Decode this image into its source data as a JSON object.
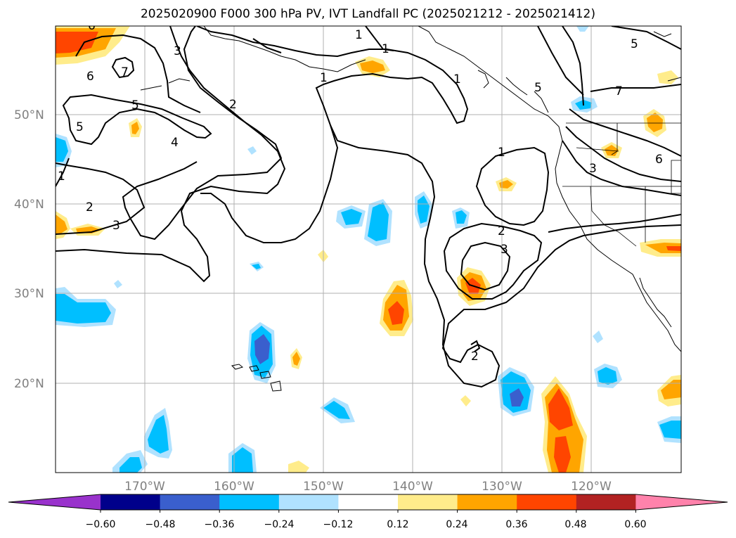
{
  "title": "2025020900 F000 300 hPa PV, IVT Landfall PC (2025021212 - 2025021412)",
  "lat_ticks": [
    "50°N",
    "40°N",
    "30°N",
    "20°N"
  ],
  "lon_ticks": [
    "170°W",
    "160°W",
    "150°W",
    "140°W",
    "130°W",
    "120°W"
  ],
  "colorbar": {
    "ticks": [
      "−0.60",
      "−0.48",
      "−0.36",
      "−0.24",
      "−0.12",
      "0.12",
      "0.24",
      "0.36",
      "0.48",
      "0.60"
    ],
    "colors": [
      "#9932cc",
      "#00008b",
      "#3a5fcd",
      "#00bfff",
      "#b0e2ff",
      "#ffffff",
      "#ffec8b",
      "#ffa500",
      "#ff4500",
      "#b22222",
      "#ff82ab"
    ]
  },
  "contour_labels": [
    "1",
    "1",
    "1",
    "1",
    "1",
    "1",
    "2",
    "2",
    "2",
    "2",
    "3",
    "3",
    "3",
    "3",
    "4",
    "5",
    "5",
    "5",
    "5",
    "6",
    "6",
    "7",
    "7"
  ],
  "shading_colors": {
    "pos1": "#ffec8b",
    "pos2": "#ffa500",
    "pos3": "#ff4500",
    "neg1": "#b0e2ff",
    "neg2": "#00bfff",
    "neg3": "#3a5fcd"
  }
}
